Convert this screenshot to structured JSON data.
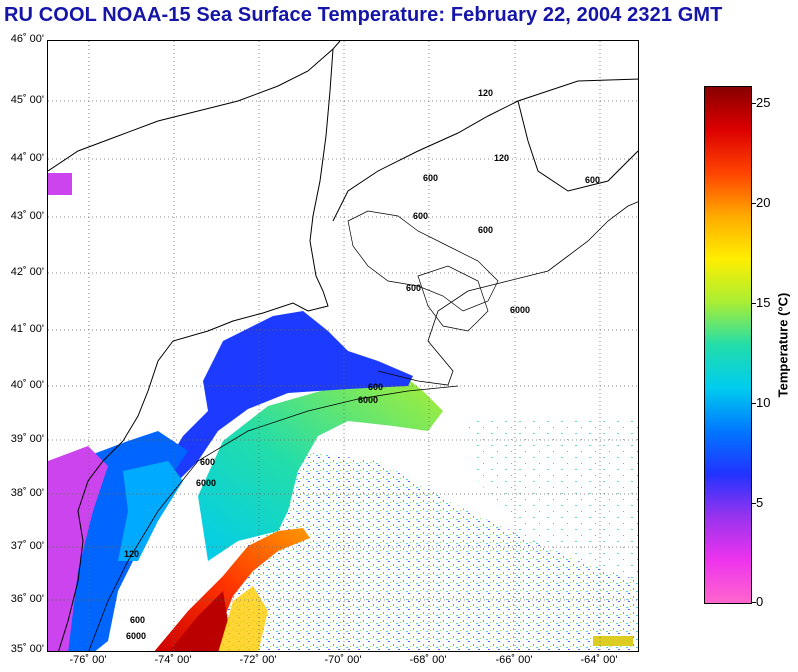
{
  "header": {
    "title": "RU COOL  NOAA-15  Sea Surface Temperature:  February 22, 2004 2321 GMT"
  },
  "map": {
    "lat_labels": [
      "46˚ 00'",
      "45˚ 00'",
      "44˚ 00'",
      "43˚ 00'",
      "42˚ 00'",
      "41˚ 00'",
      "40˚ 00'",
      "39˚ 00'",
      "38˚ 00'",
      "37˚ 00'",
      "36˚ 00'",
      "35˚ 00'"
    ],
    "lon_labels": [
      "-76˚ 00'",
      "-74˚ 00'",
      "-72˚ 00'",
      "-70˚ 00'",
      "-68˚ 00'",
      "-66˚ 00'",
      "-64˚ 00'"
    ],
    "contour_labels": [
      "120",
      "600",
      "600",
      "600",
      "600",
      "6000",
      "600",
      "6000",
      "600",
      "6000",
      "120",
      "600",
      "6000",
      "120",
      "600"
    ]
  },
  "colorbar": {
    "label": "Temperature (°C)",
    "ticks": [
      "25",
      "20",
      "15",
      "10",
      "5",
      "0"
    ],
    "colors": [
      "#ff66cc",
      "#ee33ee",
      "#9933ee",
      "#2233ff",
      "#0077ff",
      "#00ccee",
      "#22ddaa",
      "#aaee33",
      "#ffee00",
      "#ffaa00",
      "#ff4400",
      "#dd0000",
      "#880000"
    ]
  }
}
